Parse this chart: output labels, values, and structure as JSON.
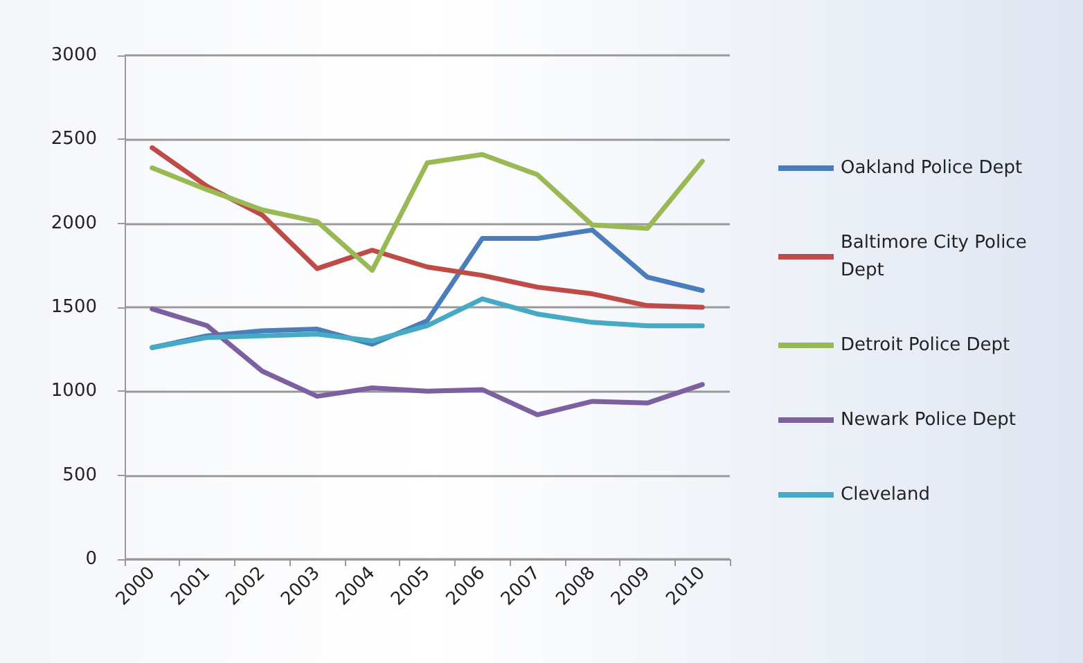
{
  "chart_data": {
    "type": "line",
    "categories": [
      "2000",
      "2001",
      "2002",
      "2003",
      "2004",
      "2005",
      "2006",
      "2007",
      "2008",
      "2009",
      "2010"
    ],
    "series": [
      {
        "name": "Oakland Police Dept",
        "color": "#4a7ebb",
        "values": [
          1260,
          1330,
          1360,
          1370,
          1280,
          1420,
          1910,
          1910,
          1960,
          1680,
          1600
        ]
      },
      {
        "name": "Baltimore City Police Dept",
        "color": "#be4b48",
        "values": [
          2450,
          2220,
          2050,
          1730,
          1840,
          1740,
          1690,
          1620,
          1580,
          1510,
          1500
        ]
      },
      {
        "name": "Detroit Police Dept",
        "color": "#98b954",
        "values": [
          2330,
          2200,
          2080,
          2010,
          1720,
          2360,
          2410,
          2290,
          1990,
          1970,
          2370
        ]
      },
      {
        "name": "Newark Police Dept",
        "color": "#7d60a0",
        "values": [
          1490,
          1390,
          1120,
          970,
          1020,
          1000,
          1010,
          860,
          940,
          930,
          1040
        ]
      },
      {
        "name": "Cleveland",
        "color": "#46aac5",
        "values": [
          1260,
          1320,
          1330,
          1340,
          1300,
          1390,
          1550,
          1460,
          1410,
          1390,
          1390
        ]
      }
    ],
    "ylim": [
      0,
      3000
    ],
    "yticks": [
      0,
      500,
      1000,
      1500,
      2000,
      2500,
      3000
    ],
    "grid": "y",
    "legend": "right",
    "marker": "none",
    "line_style": "solid"
  }
}
